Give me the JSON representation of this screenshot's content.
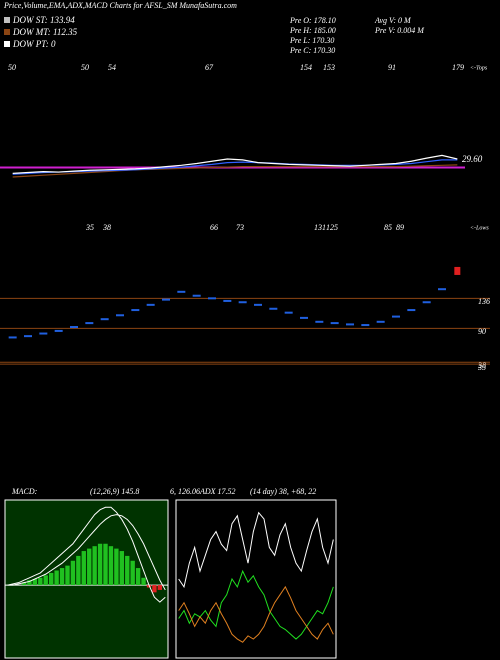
{
  "header": {
    "title": "Price,Volume,EMA,ADX,MACD Charts for AFSL_SM MunafaSutra.com",
    "legend": [
      {
        "text": "DOW ST: 133.94",
        "color": "#c0c0c0"
      },
      {
        "text": "DOW MT: 112.35",
        "color": "#8b4513"
      },
      {
        "text": "DOW PT: 0",
        "color": "#ffffff"
      }
    ],
    "stats": [
      "Pre  O: 178.10",
      "Pre  H: 185.00",
      "Pre  L: 170.30",
      "Pre  C: 170.30",
      "Avg V: 0  M",
      "Pre  V: 0.004  M"
    ]
  },
  "chart_data": [
    {
      "type": "line",
      "tops": [
        "50",
        "50",
        "54",
        "67",
        "154",
        "153",
        "91",
        "179"
      ],
      "tops_note": "<-Tops",
      "last_label": "29.60",
      "ylim": [
        0,
        400
      ],
      "levels": [
        {
          "value": 161,
          "color": "#d020d0"
        }
      ],
      "series": [
        {
          "color": "#8b4513",
          "values": [
            140,
            142,
            144,
            146,
            148,
            150,
            152,
            154,
            156,
            157,
            158,
            159,
            160,
            161,
            162,
            163,
            163,
            163,
            163,
            163,
            163,
            163,
            163,
            163,
            163,
            163,
            164,
            165,
            166,
            167
          ]
        },
        {
          "color": "#3060ff",
          "values": [
            146,
            148,
            150,
            151,
            152,
            153,
            154,
            155,
            156,
            158,
            160,
            162,
            165,
            168,
            172,
            173,
            172,
            171,
            169,
            168,
            167,
            166,
            166,
            166,
            167,
            168,
            170,
            174,
            178,
            178
          ]
        },
        {
          "color": "#ffffff",
          "values": [
            148,
            150,
            152,
            151,
            153,
            155,
            156,
            157,
            158,
            160,
            163,
            166,
            170,
            175,
            180,
            178,
            172,
            170,
            168,
            167,
            166,
            165,
            164,
            166,
            168,
            170,
            175,
            182,
            188,
            180
          ]
        }
      ]
    },
    {
      "type": "scatter",
      "lows": [
        "35",
        "38",
        "66",
        "73",
        "131",
        "125",
        "85",
        "89"
      ],
      "lows_note": "<-Lows",
      "ylim": [
        0,
        250
      ],
      "yticks": [
        136,
        90,
        38,
        35
      ],
      "color": "#2060e0",
      "highlight_color": "#e02020",
      "values": [
        76,
        78,
        82,
        86,
        92,
        98,
        104,
        110,
        118,
        126,
        134,
        146,
        140,
        136,
        132,
        130,
        126,
        120,
        114,
        106,
        100,
        98,
        96,
        95,
        100,
        108,
        118,
        130,
        150,
        178
      ]
    },
    {
      "type": "combo",
      "title": "MACD:",
      "params": "(12,26,9) 145.8",
      "extra": "6, 126.06",
      "ylim": [
        -60,
        70
      ],
      "color": "#20c020",
      "background": "#003300",
      "values": [
        0,
        0,
        0,
        2,
        4,
        5,
        6,
        8,
        10,
        12,
        14,
        16,
        20,
        24,
        28,
        30,
        32,
        34,
        34,
        32,
        30,
        28,
        24,
        20,
        14,
        6,
        -2,
        -6,
        -4,
        0
      ],
      "series": [
        {
          "color": "#ffffff",
          "values": [
            0,
            1,
            2,
            4,
            6,
            8,
            10,
            14,
            18,
            22,
            26,
            30,
            34,
            40,
            46,
            52,
            58,
            62,
            64,
            64,
            60,
            54,
            46,
            36,
            24,
            12,
            0,
            -10,
            -14,
            -10
          ]
        },
        {
          "color": "#ffffff",
          "values": [
            0,
            0,
            1,
            2,
            3,
            5,
            7,
            9,
            12,
            15,
            18,
            22,
            26,
            30,
            35,
            40,
            45,
            50,
            54,
            57,
            58,
            57,
            54,
            49,
            42,
            34,
            24,
            14,
            4,
            -4
          ]
        }
      ]
    },
    {
      "type": "line",
      "title": "ADX 17.52",
      "params": "(14 day) 38, +68, 22",
      "ylim": [
        0,
        100
      ],
      "series": [
        {
          "color": "#ffffff",
          "values": [
            50,
            45,
            60,
            70,
            55,
            65,
            75,
            80,
            72,
            68,
            85,
            90,
            75,
            60,
            80,
            92,
            88,
            70,
            65,
            78,
            85,
            70,
            60,
            55,
            68,
            80,
            88,
            70,
            60,
            75
          ]
        },
        {
          "color": "#20e020",
          "values": [
            25,
            30,
            22,
            28,
            26,
            30,
            24,
            20,
            35,
            40,
            50,
            45,
            55,
            48,
            52,
            45,
            40,
            30,
            25,
            20,
            18,
            15,
            12,
            15,
            20,
            25,
            30,
            28,
            35,
            45
          ]
        },
        {
          "color": "#e08020",
          "values": [
            30,
            35,
            28,
            20,
            26,
            22,
            30,
            35,
            28,
            22,
            15,
            12,
            10,
            14,
            12,
            15,
            20,
            28,
            35,
            40,
            45,
            38,
            30,
            25,
            20,
            15,
            12,
            18,
            22,
            15
          ]
        }
      ]
    }
  ]
}
